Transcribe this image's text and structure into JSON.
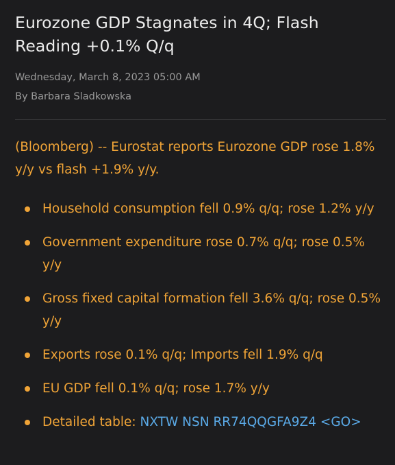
{
  "article": {
    "headline": "Eurozone GDP Stagnates in 4Q; Flash Reading +0.1% Q/q",
    "date": "Wednesday, March 8, 2023 05:00 AM",
    "byline": "By Barbara Sladkowska",
    "lead": "(Bloomberg) -- Eurostat reports Eurozone GDP rose 1.8% y/y vs flash +1.9% y/y.",
    "bullets": [
      {
        "text": "Household consumption fell 0.9% q/q; rose 1.2% y/y"
      },
      {
        "text": "Government expenditure rose 0.7% q/q; rose 0.5% y/y"
      },
      {
        "text": "Gross fixed capital formation fell 3.6% q/q; rose 0.5% y/y"
      },
      {
        "text": "Exports rose 0.1% q/q; Imports fell 1.9% q/q"
      },
      {
        "text": "EU GDP fell 0.1% q/q; rose 1.7% y/y"
      }
    ],
    "detail_label": "Detailed table:",
    "detail_link": "NXTW NSN RR74QQGFA9Z4 <GO>"
  },
  "colors": {
    "background": "#1c1c1e",
    "headline": "#ececec",
    "meta": "#9a9a9a",
    "body_amber": "#f0a437",
    "link_blue": "#5aa9e6"
  }
}
